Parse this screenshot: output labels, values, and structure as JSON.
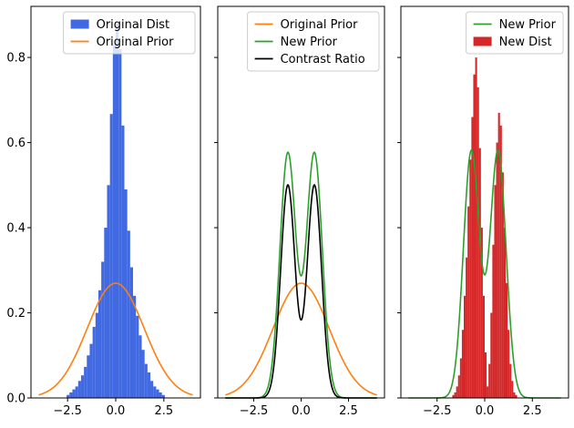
{
  "chart_data": [
    {
      "type": "bar",
      "panel": "left",
      "xlim": [
        -4.4,
        4.4
      ],
      "ylim": [
        0,
        0.92
      ],
      "xticks": [
        -2.5,
        0.0,
        2.5
      ],
      "xtick_labels": [
        "−2.5",
        "0.0",
        "2.5"
      ],
      "yticks": [
        0.0,
        0.2,
        0.4,
        0.6,
        0.8
      ],
      "ytick_labels": [
        "0.0",
        "0.2",
        "0.4",
        "0.6",
        "0.8"
      ],
      "legend_position": "top-right",
      "legend": [
        {
          "label": "Original Dist",
          "kind": "patch",
          "color": "#4169e1"
        },
        {
          "label": "Original Prior",
          "kind": "line",
          "color": "#ff7f0e"
        }
      ],
      "histogram": {
        "name": "Original Dist",
        "color": "#4169e1",
        "bin_width": 0.15,
        "bins_start": -2.55,
        "values": [
          0.007,
          0.013,
          0.02,
          0.027,
          0.04,
          0.053,
          0.073,
          0.1,
          0.127,
          0.167,
          0.2,
          0.253,
          0.32,
          0.4,
          0.5,
          0.667,
          0.83,
          0.88,
          0.82,
          0.64,
          0.49,
          0.393,
          0.307,
          0.24,
          0.193,
          0.147,
          0.113,
          0.08,
          0.06,
          0.04,
          0.027,
          0.02,
          0.013,
          0.007
        ]
      },
      "curves": [
        {
          "name": "Original Prior",
          "color": "#ff7f0e",
          "shape": "gaussian",
          "mean": 0.0,
          "sd": 1.48,
          "x_range": [
            -4.0,
            4.0
          ]
        }
      ]
    },
    {
      "type": "line",
      "panel": "middle",
      "xlim": [
        -4.4,
        4.4
      ],
      "ylim": [
        0,
        0.92
      ],
      "xticks": [
        -2.5,
        0.0,
        2.5
      ],
      "xtick_labels": [
        "−2.5",
        "0.0",
        "2.5"
      ],
      "yticks": [
        0.0,
        0.2,
        0.4,
        0.6,
        0.8
      ],
      "legend_position": "top-right",
      "legend": [
        {
          "label": "Original Prior",
          "kind": "line",
          "color": "#ff7f0e"
        },
        {
          "label": "New Prior",
          "kind": "line",
          "color": "#2ca02c"
        },
        {
          "label": "Contrast Ratio",
          "kind": "line",
          "color": "#000000"
        }
      ],
      "curves": [
        {
          "name": "Original Prior",
          "color": "#ff7f0e",
          "shape": "gaussian",
          "mean": 0.0,
          "sd": 1.48,
          "x_range": [
            -4.0,
            4.0
          ]
        },
        {
          "name": "New Prior",
          "color": "#2ca02c",
          "shape": "bimodal",
          "peak": 0.575,
          "mu": 0.7,
          "sd": 0.42,
          "x_range": [
            -4.0,
            4.0
          ]
        },
        {
          "name": "Contrast Ratio",
          "color": "#000000",
          "shape": "bimodal",
          "peak": 0.5,
          "mu": 0.7,
          "sd": 0.38,
          "x_range": [
            -4.0,
            4.0
          ]
        }
      ]
    },
    {
      "type": "bar",
      "panel": "right",
      "xlim": [
        -4.4,
        4.4
      ],
      "ylim": [
        0,
        0.92
      ],
      "xticks": [
        -2.5,
        0.0,
        2.5
      ],
      "xtick_labels": [
        "−2.5",
        "0.0",
        "2.5"
      ],
      "yticks": [
        0.0,
        0.2,
        0.4,
        0.6,
        0.8
      ],
      "legend_position": "top-right",
      "legend": [
        {
          "label": "New Prior",
          "kind": "line",
          "color": "#2ca02c"
        },
        {
          "label": "New Dist",
          "kind": "patch",
          "color": "#d62728"
        }
      ],
      "histogram": {
        "name": "New Dist",
        "color": "#d62728",
        "bin_width": 0.1,
        "bins_start": -1.7,
        "values": [
          0.007,
          0.013,
          0.027,
          0.053,
          0.093,
          0.16,
          0.24,
          0.33,
          0.45,
          0.56,
          0.66,
          0.76,
          0.8,
          0.73,
          0.587,
          0.4,
          0.24,
          0.107,
          0.027,
          0.08,
          0.2,
          0.36,
          0.5,
          0.6,
          0.67,
          0.64,
          0.53,
          0.4,
          0.27,
          0.16,
          0.08,
          0.04,
          0.013,
          0.007
        ]
      },
      "curves": [
        {
          "name": "New Prior",
          "color": "#2ca02c",
          "shape": "bimodal",
          "peak": 0.58,
          "mu": 0.7,
          "sd": 0.42,
          "x_range": [
            -4.0,
            4.0
          ]
        }
      ]
    }
  ]
}
